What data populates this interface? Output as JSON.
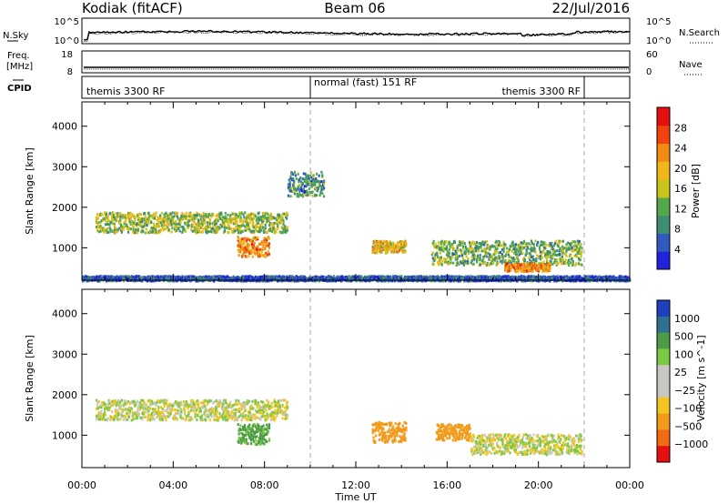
{
  "header": {
    "station": "Kodiak (fitACF)",
    "beam": "Beam 06",
    "date": "22/Jul/2016"
  },
  "top_panels": {
    "nsky": {
      "label": "N.Sky",
      "ticks": [
        "10^5",
        "10^0"
      ]
    },
    "nsearch": {
      "label": "N.Search",
      "ticks": [
        "10^5",
        "10^0"
      ]
    },
    "freq": {
      "label": "Freq.",
      "units": "[MHz]",
      "ticks": [
        "18",
        "8"
      ]
    },
    "nave": {
      "label": "Nave",
      "ticks": [
        "60",
        "0"
      ]
    },
    "cpid": {
      "label": "CPID"
    }
  },
  "cpid_modes": [
    {
      "label": "themis 3300 RF",
      "start_hour": 0,
      "end_hour": 10
    },
    {
      "label": "normal (fast) 151 RF",
      "start_hour": 10,
      "end_hour": 22
    },
    {
      "label": "themis 3300 RF",
      "start_hour": 22,
      "end_hour": 24
    }
  ],
  "chart_data": [
    {
      "type": "heatmap",
      "panel": "power",
      "xlabel": "",
      "ylabel": "Slant Range [km]",
      "xlim": [
        0,
        24
      ],
      "ylim": [
        200,
        4600
      ],
      "yticks": [
        "1000",
        "2000",
        "3000",
        "4000"
      ],
      "colorbar": {
        "label": "Power [dB]",
        "range": [
          0,
          32
        ],
        "ticks": [
          "4",
          "8",
          "12",
          "16",
          "20",
          "24",
          "28"
        ]
      },
      "echo_regions": [
        {
          "t_start": 0.6,
          "t_end": 9.0,
          "range_km": 1650,
          "range_spread": 250,
          "power_db": 16
        },
        {
          "t_start": 6.8,
          "t_end": 8.2,
          "range_km": 1050,
          "range_spread": 250,
          "power_db": 26
        },
        {
          "t_start": 9.0,
          "t_end": 10.6,
          "range_km": 2600,
          "range_spread": 300,
          "power_db": 10
        },
        {
          "t_start": 12.7,
          "t_end": 14.2,
          "range_km": 1050,
          "range_spread": 150,
          "power_db": 22
        },
        {
          "t_start": 15.3,
          "t_end": 21.9,
          "range_km": 900,
          "range_spread": 300,
          "power_db": 14
        },
        {
          "t_start": 18.5,
          "t_end": 20.5,
          "range_km": 550,
          "range_spread": 100,
          "power_db": 26
        },
        {
          "t_start": 0.0,
          "t_end": 24.0,
          "range_km": 270,
          "range_spread": 60,
          "power_db": 6
        }
      ]
    },
    {
      "type": "heatmap",
      "panel": "velocity",
      "xlabel": "Time UT",
      "ylabel": "Slant Range [km]",
      "xlim": [
        0,
        24
      ],
      "ylim": [
        200,
        4600
      ],
      "xticks": [
        "00:00",
        "04:00",
        "08:00",
        "12:00",
        "16:00",
        "20:00",
        "00:00"
      ],
      "yticks": [
        "1000",
        "2000",
        "3000",
        "4000"
      ],
      "colorbar": {
        "label": "Velocity [m s^-1]",
        "ticks": [
          "1000",
          "500",
          "100",
          "25",
          "−25",
          "−100",
          "−500",
          "−1000"
        ]
      },
      "echo_regions": [
        {
          "t_start": 0.6,
          "t_end": 9.0,
          "range_km": 1650,
          "range_spread": 250,
          "velocity_ms": 0
        },
        {
          "t_start": 6.8,
          "t_end": 8.2,
          "range_km": 1050,
          "range_spread": 250,
          "velocity_ms": 150
        },
        {
          "t_start": 12.7,
          "t_end": 14.2,
          "range_km": 1100,
          "range_spread": 250,
          "velocity_ms": -300
        },
        {
          "t_start": 15.5,
          "t_end": 17.0,
          "range_km": 1100,
          "range_spread": 200,
          "velocity_ms": -200
        },
        {
          "t_start": 17.0,
          "t_end": 21.9,
          "range_km": 800,
          "range_spread": 250,
          "velocity_ms": 0
        }
      ]
    }
  ]
}
